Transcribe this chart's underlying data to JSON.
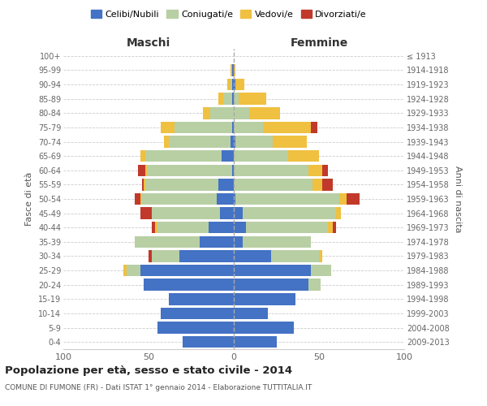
{
  "age_groups": [
    "0-4",
    "5-9",
    "10-14",
    "15-19",
    "20-24",
    "25-29",
    "30-34",
    "35-39",
    "40-44",
    "45-49",
    "50-54",
    "55-59",
    "60-64",
    "65-69",
    "70-74",
    "75-79",
    "80-84",
    "85-89",
    "90-94",
    "95-99",
    "100+"
  ],
  "birth_years": [
    "2009-2013",
    "2004-2008",
    "1999-2003",
    "1994-1998",
    "1989-1993",
    "1984-1988",
    "1979-1983",
    "1974-1978",
    "1969-1973",
    "1964-1968",
    "1959-1963",
    "1954-1958",
    "1949-1953",
    "1944-1948",
    "1939-1943",
    "1934-1938",
    "1929-1933",
    "1924-1928",
    "1919-1923",
    "1914-1918",
    "≤ 1913"
  ],
  "maschi": {
    "celibi": [
      30,
      45,
      43,
      38,
      53,
      55,
      32,
      20,
      15,
      8,
      10,
      9,
      1,
      7,
      2,
      1,
      0,
      1,
      1,
      1,
      0
    ],
    "coniugati": [
      0,
      0,
      0,
      0,
      0,
      8,
      16,
      38,
      30,
      40,
      44,
      43,
      50,
      45,
      36,
      34,
      14,
      5,
      1,
      0,
      0
    ],
    "vedovi": [
      0,
      0,
      0,
      0,
      0,
      2,
      0,
      0,
      1,
      0,
      1,
      1,
      1,
      3,
      3,
      8,
      4,
      3,
      2,
      1,
      0
    ],
    "divorziati": [
      0,
      0,
      0,
      0,
      0,
      0,
      2,
      0,
      2,
      7,
      3,
      1,
      4,
      0,
      0,
      0,
      0,
      0,
      0,
      0,
      0
    ]
  },
  "femmine": {
    "nubili": [
      25,
      35,
      20,
      36,
      44,
      45,
      22,
      5,
      7,
      5,
      1,
      0,
      0,
      0,
      1,
      0,
      0,
      0,
      1,
      0,
      0
    ],
    "coniugate": [
      0,
      0,
      0,
      0,
      7,
      12,
      28,
      40,
      48,
      55,
      61,
      46,
      44,
      32,
      22,
      17,
      9,
      3,
      0,
      0,
      0
    ],
    "vedove": [
      0,
      0,
      0,
      0,
      0,
      0,
      2,
      0,
      3,
      3,
      4,
      6,
      8,
      18,
      20,
      28,
      18,
      16,
      5,
      1,
      0
    ],
    "divorziate": [
      0,
      0,
      0,
      0,
      0,
      0,
      0,
      0,
      2,
      0,
      8,
      6,
      3,
      0,
      0,
      4,
      0,
      0,
      0,
      0,
      0
    ]
  },
  "colors": {
    "celibi": "#4472c4",
    "coniugati": "#b8cfa4",
    "vedovi": "#f0c040",
    "divorziati": "#c0392b"
  },
  "title": "Popolazione per età, sesso e stato civile - 2014",
  "subtitle": "COMUNE DI FUMONE (FR) - Dati ISTAT 1° gennaio 2014 - Elaborazione TUTTITALIA.IT",
  "xlabel_left": "Maschi",
  "xlabel_right": "Femmine",
  "ylabel_left": "Fasce di età",
  "ylabel_right": "Anni di nascita",
  "xlim": 100,
  "legend_labels": [
    "Celibi/Nubili",
    "Coniugati/e",
    "Vedovi/e",
    "Divorziati/e"
  ],
  "bg_color": "#ffffff",
  "grid_color": "#cccccc"
}
